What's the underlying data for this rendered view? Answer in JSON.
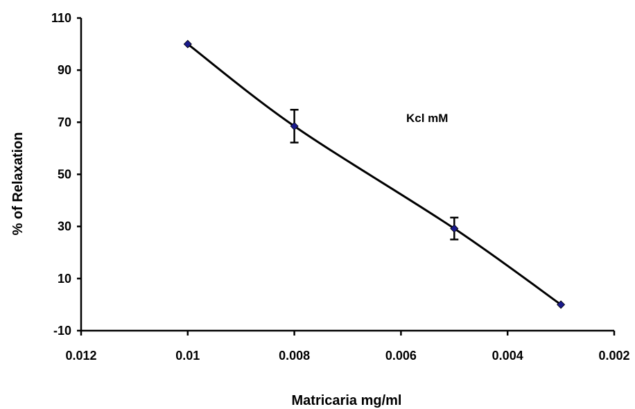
{
  "chart_data": {
    "type": "scatter",
    "title": "",
    "xlabel": "Matricaria mg/ml",
    "ylabel": "% of Relaxation",
    "x_reversed": true,
    "xlim": [
      0.012,
      0.002
    ],
    "ylim": [
      -10,
      110
    ],
    "x_ticks": [
      0.012,
      0.01,
      0.008,
      0.006,
      0.004,
      0.002
    ],
    "x_tick_labels": [
      "0.012",
      "0.01",
      "0.008",
      "0.006",
      "0.004",
      "0.002"
    ],
    "y_ticks": [
      -10,
      10,
      30,
      50,
      70,
      90,
      110
    ],
    "y_tick_labels": [
      "-10",
      "10",
      "30",
      "50",
      "70",
      "90",
      "110"
    ],
    "grid": false,
    "legend": "none",
    "annotation": "Kcl mM",
    "series": [
      {
        "points": [
          {
            "x": 0.01,
            "y": 100,
            "err": null
          },
          {
            "x": 0.008,
            "y": 68.5,
            "err": 6.3
          },
          {
            "x": 0.005,
            "y": 29.2,
            "err": 4.2
          },
          {
            "x": 0.003,
            "y": 0,
            "err": null
          }
        ],
        "line_color": "#000000",
        "marker_color": "#1a1a8c",
        "smooth": true
      }
    ]
  }
}
